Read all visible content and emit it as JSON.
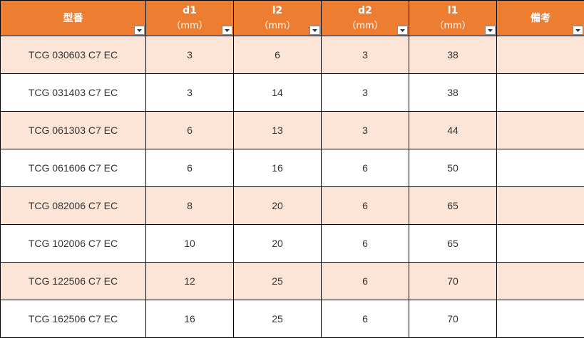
{
  "colors": {
    "header_bg": "#ED7D31",
    "header_text": "#ffffff",
    "band_row_bg": "#FCE4D6",
    "plain_row_bg": "#ffffff"
  },
  "header": {
    "model": "型番",
    "d1": "d1",
    "d1_unit": "（mm）",
    "l2": "l2",
    "l2_unit": "（mm）",
    "d2": "d2",
    "d2_unit": "（mm）",
    "l1": "l1",
    "l1_unit": "（mm）",
    "remarks": "備考"
  },
  "filter_icon": "dropdown-arrow-icon",
  "rows": [
    {
      "model": "TCG 030603 C7 EC",
      "d1": "3",
      "l2": "6",
      "d2": "3",
      "l1": "38",
      "remarks": ""
    },
    {
      "model": "TCG 031403 C7 EC",
      "d1": "3",
      "l2": "14",
      "d2": "3",
      "l1": "38",
      "remarks": ""
    },
    {
      "model": "TCG 061303 C7 EC",
      "d1": "6",
      "l2": "13",
      "d2": "3",
      "l1": "44",
      "remarks": ""
    },
    {
      "model": "TCG 061606 C7 EC",
      "d1": "6",
      "l2": "16",
      "d2": "6",
      "l1": "50",
      "remarks": ""
    },
    {
      "model": "TCG 082006 C7 EC",
      "d1": "8",
      "l2": "20",
      "d2": "6",
      "l1": "65",
      "remarks": ""
    },
    {
      "model": "TCG 102006 C7 EC",
      "d1": "10",
      "l2": "20",
      "d2": "6",
      "l1": "65",
      "remarks": ""
    },
    {
      "model": "TCG 122506 C7 EC",
      "d1": "12",
      "l2": "25",
      "d2": "6",
      "l1": "70",
      "remarks": ""
    },
    {
      "model": "TCG 162506 C7 EC",
      "d1": "16",
      "l2": "25",
      "d2": "6",
      "l1": "70",
      "remarks": ""
    }
  ]
}
